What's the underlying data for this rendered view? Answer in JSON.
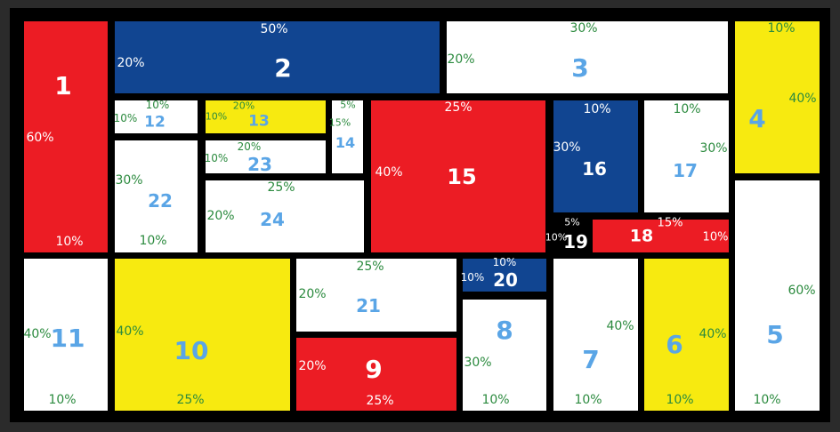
{
  "colors": {
    "red": "#ec1c24",
    "blue": "#114591",
    "yellow": "#f7ea10",
    "white": "#ffffff",
    "black": "#000000",
    "number_light": "#ffffff",
    "number_accent": "#5aa5e6",
    "percent_green": "#2b8a3e",
    "percent_white": "#ffffff"
  },
  "cells": [
    {
      "id": "1",
      "color": "red",
      "number": "1",
      "labels": [
        "60%",
        "10%"
      ]
    },
    {
      "id": "2",
      "color": "blue",
      "number": "2",
      "labels": [
        "50%",
        "20%"
      ]
    },
    {
      "id": "3",
      "color": "white",
      "number": "3",
      "labels": [
        "30%",
        "20%"
      ]
    },
    {
      "id": "4",
      "color": "yellow",
      "number": "4",
      "labels": [
        "10%",
        "40%"
      ]
    },
    {
      "id": "5",
      "color": "white",
      "number": "5",
      "labels": [
        "60%",
        "10%"
      ]
    },
    {
      "id": "6",
      "color": "yellow",
      "number": "6",
      "labels": [
        "40%",
        "10%"
      ]
    },
    {
      "id": "7",
      "color": "white",
      "number": "7",
      "labels": [
        "40%",
        "10%"
      ]
    },
    {
      "id": "8",
      "color": "white",
      "number": "8",
      "labels": [
        "30%",
        "10%"
      ]
    },
    {
      "id": "9",
      "color": "red",
      "number": "9",
      "labels": [
        "20%",
        "25%"
      ]
    },
    {
      "id": "10",
      "color": "yellow",
      "number": "10",
      "labels": [
        "40%",
        "25%"
      ]
    },
    {
      "id": "11",
      "color": "white",
      "number": "11",
      "labels": [
        "40%",
        "10%"
      ]
    },
    {
      "id": "12",
      "color": "white",
      "number": "12",
      "labels": [
        "10%",
        "10%"
      ]
    },
    {
      "id": "13",
      "color": "yellow",
      "number": "13",
      "labels": [
        "20%",
        "10%"
      ]
    },
    {
      "id": "14",
      "color": "white",
      "number": "14",
      "labels": [
        "5%",
        "15%"
      ]
    },
    {
      "id": "15",
      "color": "red",
      "number": "15",
      "labels": [
        "25%",
        "40%"
      ]
    },
    {
      "id": "16",
      "color": "blue",
      "number": "16",
      "labels": [
        "10%",
        "30%"
      ]
    },
    {
      "id": "17",
      "color": "white",
      "number": "17",
      "labels": [
        "10%",
        "30%"
      ]
    },
    {
      "id": "18",
      "color": "red",
      "number": "18",
      "labels": [
        "15%",
        "10%"
      ]
    },
    {
      "id": "19",
      "color": "black",
      "number": "19",
      "labels": [
        "5%",
        "10%"
      ]
    },
    {
      "id": "20",
      "color": "blue",
      "number": "20",
      "labels": [
        "10%",
        "10%"
      ]
    },
    {
      "id": "21",
      "color": "white",
      "number": "21",
      "labels": [
        "25%",
        "20%"
      ]
    },
    {
      "id": "22",
      "color": "white",
      "number": "22",
      "labels": [
        "30%",
        "10%"
      ]
    },
    {
      "id": "23",
      "color": "white",
      "number": "23",
      "labels": [
        "20%",
        "10%"
      ]
    },
    {
      "id": "24",
      "color": "white",
      "number": "24",
      "labels": [
        "25%",
        "20%"
      ]
    }
  ]
}
